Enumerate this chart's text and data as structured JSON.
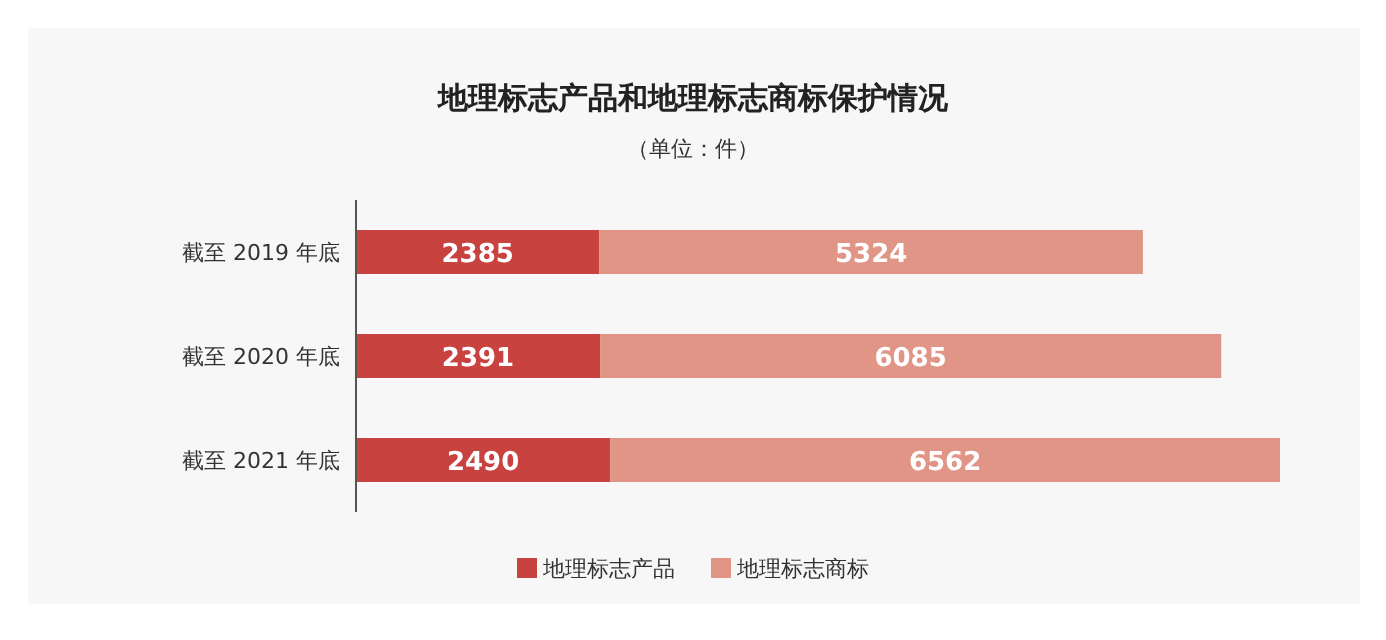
{
  "chart_data": {
    "type": "bar",
    "orientation": "horizontal",
    "stacked": true,
    "title": "地理标志产品和地理标志商标保护情况",
    "subtitle": "（单位：件）",
    "categories": [
      "截至 2019 年底",
      "截至 2020 年底",
      "截至 2021 年底"
    ],
    "series": [
      {
        "name": "地理标志产品",
        "color": "#c8423f",
        "values": [
          2385,
          2391,
          2490
        ]
      },
      {
        "name": "地理标志商标",
        "color": "#e09586",
        "values": [
          5324,
          6085,
          6562
        ]
      }
    ],
    "data_labels": true,
    "legend": "bottom"
  }
}
